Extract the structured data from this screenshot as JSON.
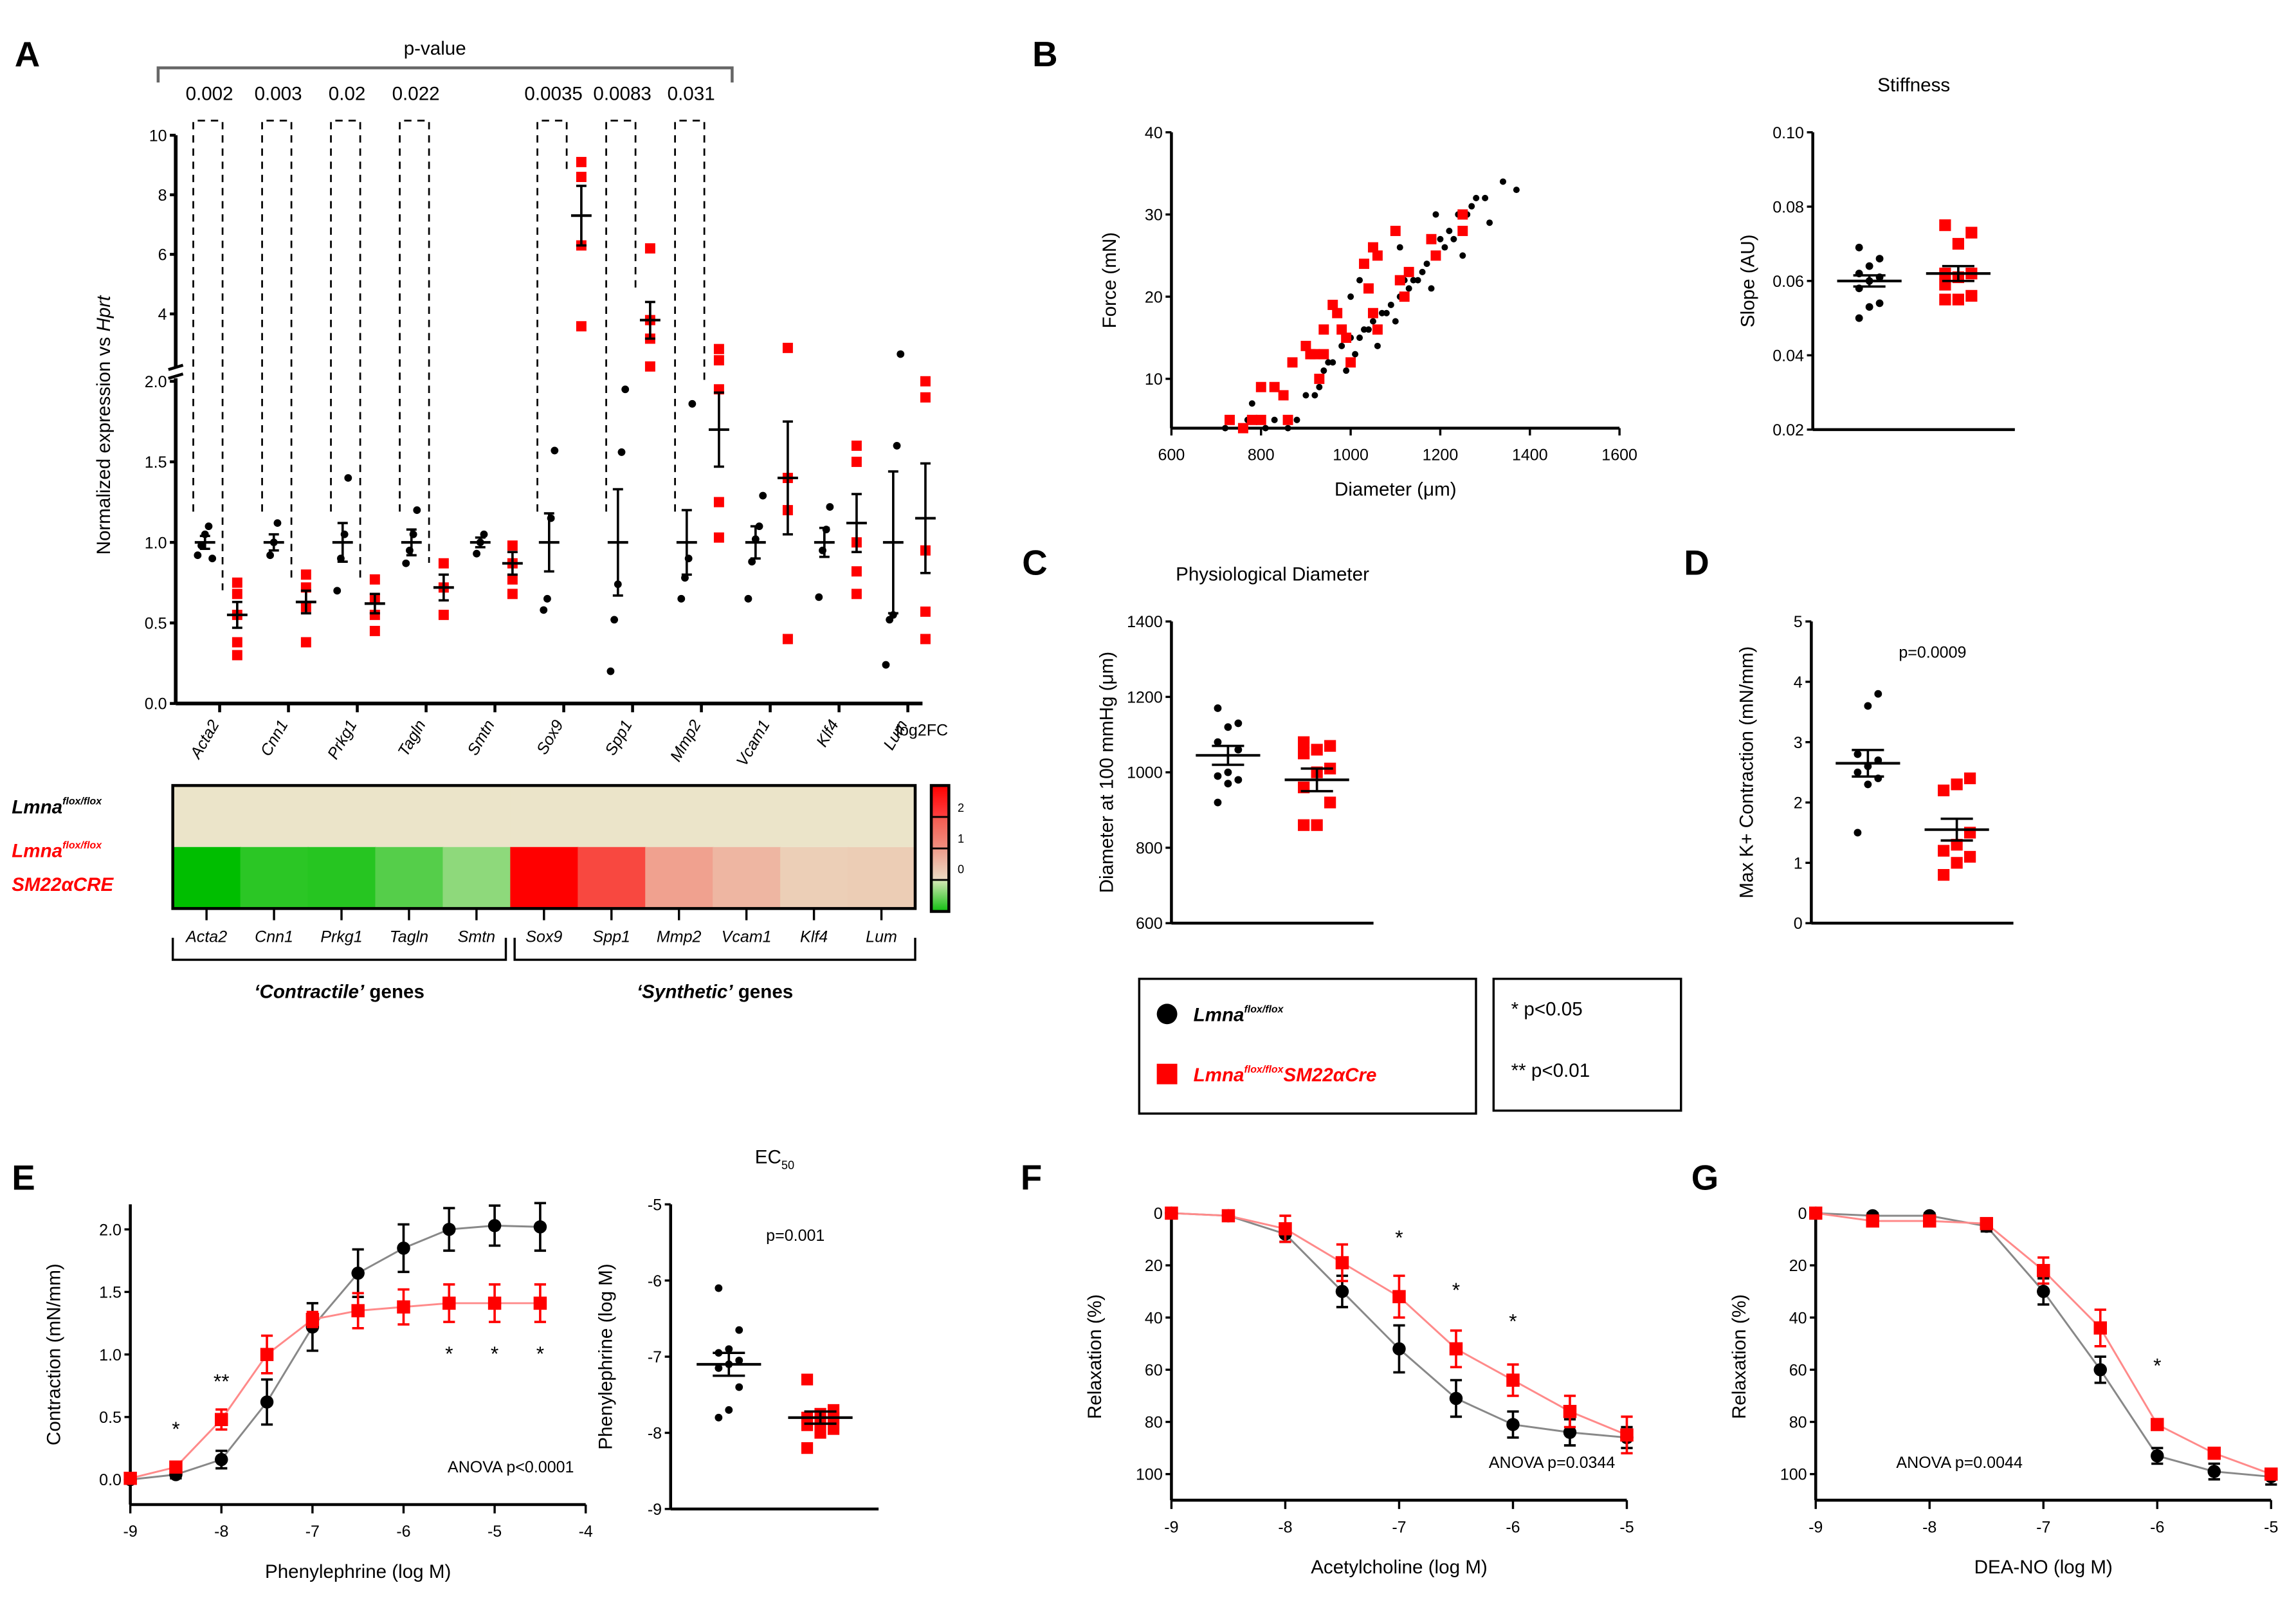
{
  "colors": {
    "control": "#000000",
    "mutant": "#ff0000",
    "control_line": "#888888",
    "mutant_line": "#ff8a8a"
  },
  "legend": {
    "control_base": "Lmna",
    "control_sup": "flox/flox",
    "mutant_base": "Lmna",
    "mutant_sup": "flox/flox",
    "mutant_suffix": "SM22αCre",
    "sig1": "* p<0.05",
    "sig2": "** p<0.01"
  },
  "chart_data": [
    {
      "panel": "A",
      "type": "scatter",
      "header": "p-value",
      "ylabel": "Normalized expression vs Hprt",
      "yticks_lower": [
        "0.0",
        "0.5",
        "1.0",
        "1.5",
        "2.0"
      ],
      "yticks_upper": [
        "4",
        "6",
        "8",
        "10"
      ],
      "log2fc_label": "log2FC",
      "categories": [
        "Acta2",
        "Cnn1",
        "Prkg1",
        "Tagln",
        "Smtn",
        "Sox9",
        "Spp1",
        "Mmp2",
        "Vcam1",
        "Klf4",
        "Lum"
      ],
      "pvalues": [
        "0.002",
        "0.003",
        "0.02",
        "0.022",
        "",
        "0.0035",
        "0.0083",
        "0.031",
        "",
        "",
        ""
      ],
      "control": {
        "mean": [
          1.0,
          1.0,
          1.0,
          1.0,
          1.0,
          1.0,
          1.0,
          1.0,
          1.0,
          1.0,
          1.0
        ],
        "sem": [
          0.04,
          0.05,
          0.12,
          0.08,
          0.03,
          0.18,
          0.33,
          0.2,
          0.1,
          0.09,
          0.44
        ],
        "points": [
          [
            0.92,
            0.98,
            1.05,
            1.1,
            0.9
          ],
          [
            0.92,
            1.0,
            1.12
          ],
          [
            0.7,
            0.9,
            1.05,
            1.4
          ],
          [
            0.87,
            0.95,
            1.05,
            1.2
          ],
          [
            0.93,
            1.0,
            1.05
          ],
          [
            0.58,
            0.65,
            1.15,
            1.57
          ],
          [
            0.2,
            0.52,
            0.74,
            1.56,
            1.95
          ],
          [
            0.65,
            0.78,
            0.9,
            1.86
          ],
          [
            0.65,
            0.88,
            1.02,
            1.1,
            1.29
          ],
          [
            0.66,
            0.95,
            1.08,
            1.22
          ],
          [
            0.24,
            0.52,
            0.55,
            1.6,
            2.7
          ]
        ]
      },
      "mutant": {
        "mean": [
          0.55,
          0.63,
          0.62,
          0.72,
          0.87,
          7.3,
          3.8,
          1.7,
          1.4,
          1.12,
          1.15
        ],
        "sem": [
          0.08,
          0.07,
          0.06,
          0.08,
          0.07,
          1.0,
          0.6,
          0.23,
          0.35,
          0.18,
          0.34
        ],
        "points": [
          [
            0.3,
            0.38,
            0.55,
            0.68,
            0.75
          ],
          [
            0.38,
            0.6,
            0.72,
            0.8
          ],
          [
            0.45,
            0.55,
            0.65,
            0.77
          ],
          [
            0.55,
            0.72,
            0.87
          ],
          [
            0.68,
            0.77,
            0.87,
            0.98
          ],
          [
            3.6,
            6.3,
            8.6,
            9.1
          ],
          [
            2.3,
            3.2,
            3.8,
            6.2
          ],
          [
            1.03,
            1.25,
            1.95,
            2.2,
            2.5
          ],
          [
            0.4,
            1.2,
            1.4,
            2.9
          ],
          [
            0.68,
            0.82,
            1.0,
            1.5,
            1.6
          ],
          [
            0.4,
            0.57,
            0.95,
            1.9,
            2.0
          ]
        ]
      },
      "heatmap": {
        "rows": [
          "control",
          "mutant"
        ],
        "log2fc_control": [
          0,
          0,
          0,
          0,
          0,
          0,
          0,
          0,
          0,
          0,
          0
        ],
        "log2fc_mutant": [
          -0.87,
          -0.67,
          -0.69,
          -0.47,
          -0.2,
          2.87,
          1.93,
          0.77,
          0.49,
          0.17,
          0.2
        ],
        "colorbar_ticks": [
          "2",
          "1",
          "0"
        ],
        "groups": [
          {
            "label_pre": "‘Contractile’",
            "label_post": " genes",
            "span": [
              0,
              4
            ]
          },
          {
            "label_pre": "‘Synthetic’",
            "label_post": " genes",
            "span": [
              5,
              10
            ]
          }
        ]
      }
    },
    {
      "panel": "B",
      "type": "scatter",
      "xlabel": "Diameter (μm)",
      "ylabel": "Force (mN)",
      "xlim": [
        600,
        1600
      ],
      "ylim": [
        4,
        40
      ],
      "xticks": [
        "600",
        "800",
        "1000",
        "1200",
        "1400",
        "1600"
      ],
      "yticks": [
        "10",
        "20",
        "30",
        "40"
      ],
      "control": [
        [
          720,
          4
        ],
        [
          770,
          5
        ],
        [
          780,
          7
        ],
        [
          800,
          5
        ],
        [
          810,
          4
        ],
        [
          830,
          5
        ],
        [
          860,
          4
        ],
        [
          880,
          5
        ],
        [
          900,
          8
        ],
        [
          920,
          8
        ],
        [
          930,
          9
        ],
        [
          940,
          11
        ],
        [
          950,
          12
        ],
        [
          960,
          12
        ],
        [
          980,
          14
        ],
        [
          990,
          11
        ],
        [
          1000,
          15
        ],
        [
          1010,
          13
        ],
        [
          1020,
          15
        ],
        [
          1030,
          16
        ],
        [
          1040,
          16
        ],
        [
          1050,
          17
        ],
        [
          1060,
          14
        ],
        [
          1070,
          18
        ],
        [
          1080,
          18
        ],
        [
          1090,
          19
        ],
        [
          1100,
          17
        ],
        [
          1110,
          20
        ],
        [
          1120,
          22
        ],
        [
          1130,
          21
        ],
        [
          1140,
          22
        ],
        [
          1150,
          22
        ],
        [
          1160,
          23
        ],
        [
          1170,
          24
        ],
        [
          1180,
          21
        ],
        [
          1190,
          25
        ],
        [
          1200,
          27
        ],
        [
          1210,
          26
        ],
        [
          1220,
          28
        ],
        [
          1230,
          27
        ],
        [
          1240,
          30
        ],
        [
          1250,
          25
        ],
        [
          1260,
          30
        ],
        [
          1270,
          31
        ],
        [
          1280,
          32
        ],
        [
          1300,
          32
        ],
        [
          1310,
          29
        ],
        [
          1340,
          34
        ],
        [
          1370,
          33
        ],
        [
          1000,
          20
        ],
        [
          1020,
          22
        ],
        [
          1110,
          26
        ],
        [
          1190,
          30
        ]
      ],
      "mutant": [
        [
          730,
          5
        ],
        [
          760,
          4
        ],
        [
          780,
          5
        ],
        [
          800,
          5
        ],
        [
          800,
          9
        ],
        [
          830,
          9
        ],
        [
          850,
          8
        ],
        [
          860,
          5
        ],
        [
          870,
          12
        ],
        [
          900,
          14
        ],
        [
          910,
          13
        ],
        [
          920,
          13
        ],
        [
          930,
          10
        ],
        [
          940,
          16
        ],
        [
          960,
          19
        ],
        [
          980,
          16
        ],
        [
          990,
          15
        ],
        [
          1000,
          12
        ],
        [
          1030,
          24
        ],
        [
          1040,
          21
        ],
        [
          1050,
          18
        ],
        [
          1060,
          16
        ],
        [
          1060,
          25
        ],
        [
          1100,
          28
        ],
        [
          1110,
          22
        ],
        [
          1120,
          20
        ],
        [
          1130,
          23
        ],
        [
          1180,
          27
        ],
        [
          1190,
          25
        ],
        [
          1250,
          30
        ],
        [
          1250,
          28
        ],
        [
          1050,
          26
        ],
        [
          970,
          18
        ],
        [
          940,
          13
        ]
      ]
    },
    {
      "panel": "B-stiffness",
      "type": "scatter",
      "title": "Stiffness",
      "ylabel": "Slope (AU)",
      "ylim": [
        0.02,
        0.1
      ],
      "yticks": [
        "0.02",
        "0.04",
        "0.06",
        "0.08",
        "0.10"
      ],
      "control": {
        "mean": 0.06,
        "sem": 0.0015,
        "points": [
          0.05,
          0.053,
          0.054,
          0.058,
          0.06,
          0.061,
          0.062,
          0.064,
          0.066,
          0.069
        ]
      },
      "mutant": {
        "mean": 0.062,
        "sem": 0.002,
        "points": [
          0.055,
          0.055,
          0.056,
          0.059,
          0.061,
          0.062,
          0.062,
          0.07,
          0.073,
          0.075
        ]
      }
    },
    {
      "panel": "C",
      "type": "scatter",
      "title": "Physiological Diameter",
      "ylabel": "Diameter at 100 mmHg (μm)",
      "ylim": [
        600,
        1400
      ],
      "yticks": [
        "600",
        "800",
        "1000",
        "1200",
        "1400"
      ],
      "control": {
        "mean": 1045,
        "sem": 25,
        "points": [
          920,
          970,
          980,
          990,
          1000,
          1060,
          1080,
          1120,
          1130,
          1170
        ]
      },
      "mutant": {
        "mean": 980,
        "sem": 30,
        "points": [
          860,
          860,
          920,
          960,
          1000,
          1010,
          1050,
          1060,
          1070,
          1080
        ]
      }
    },
    {
      "panel": "D",
      "type": "scatter",
      "ylabel": "Max K+ Contraction (mN/mm)",
      "ylim": [
        0,
        5
      ],
      "yticks": [
        "0",
        "1",
        "2",
        "3",
        "4",
        "5"
      ],
      "annotation": "p=0.0009",
      "control": {
        "mean": 2.65,
        "sem": 0.22,
        "points": [
          1.5,
          2.3,
          2.4,
          2.5,
          2.6,
          2.7,
          2.8,
          3.6,
          3.8
        ]
      },
      "mutant": {
        "mean": 1.55,
        "sem": 0.18,
        "points": [
          0.8,
          1.0,
          1.1,
          1.2,
          1.3,
          1.5,
          2.2,
          2.3,
          2.4
        ]
      }
    },
    {
      "panel": "E",
      "type": "line",
      "xlabel": "Phenylephrine (log M)",
      "ylabel": "Contraction (mN/mm)",
      "xlim": [
        -9,
        -4
      ],
      "ylim": [
        -0.2,
        2.2
      ],
      "xticks": [
        "-9",
        "-8",
        "-7",
        "-6",
        "-5",
        "-4"
      ],
      "yticks": [
        "0.0",
        "0.5",
        "1.0",
        "1.5",
        "2.0"
      ],
      "x": [
        -9,
        -8.5,
        -8,
        -7.5,
        -7,
        -6.5,
        -6,
        -5.5,
        -5,
        -4.5
      ],
      "series": [
        {
          "name": "Lmna flox/flox",
          "values": [
            0.0,
            0.04,
            0.16,
            0.62,
            1.22,
            1.65,
            1.85,
            2.0,
            2.03,
            2.02
          ],
          "sem": [
            0.03,
            0.03,
            0.07,
            0.18,
            0.19,
            0.19,
            0.19,
            0.17,
            0.16,
            0.19
          ]
        },
        {
          "name": "Lmna flox/flox SM22αCre",
          "values": [
            0.01,
            0.1,
            0.48,
            1.0,
            1.28,
            1.35,
            1.38,
            1.41,
            1.41,
            1.41
          ],
          "sem": [
            0.02,
            0.04,
            0.08,
            0.15,
            0.06,
            0.14,
            0.14,
            0.15,
            0.15,
            0.15
          ]
        }
      ],
      "significance": [
        {
          "x": -8.5,
          "label": "*",
          "pos": "above"
        },
        {
          "x": -8,
          "label": "**",
          "pos": "above"
        },
        {
          "x": -5.5,
          "label": "*",
          "pos": "below"
        },
        {
          "x": -5,
          "label": "*",
          "pos": "below"
        },
        {
          "x": -4.5,
          "label": "*",
          "pos": "below"
        }
      ],
      "annotation": "ANOVA p<0.0001"
    },
    {
      "panel": "E-EC50",
      "type": "scatter",
      "title": "EC50",
      "ylabel": "Phenylephrine (log M)",
      "ylim": [
        -9,
        -5
      ],
      "yticks": [
        "-9",
        "-8",
        "-7",
        "-6",
        "-5"
      ],
      "annotation": "p=0.001",
      "control": {
        "mean": -7.1,
        "sem": 0.15,
        "points": [
          -7.8,
          -7.7,
          -7.4,
          -7.15,
          -7.1,
          -7.05,
          -6.95,
          -6.9,
          -6.65,
          -6.1
        ]
      },
      "mutant": {
        "mean": -7.8,
        "sem": 0.08,
        "points": [
          -8.2,
          -8.0,
          -7.95,
          -7.9,
          -7.85,
          -7.8,
          -7.8,
          -7.75,
          -7.7,
          -7.3
        ]
      }
    },
    {
      "panel": "F",
      "type": "line",
      "xlabel": "Acetylcholine (log M)",
      "ylabel": "Relaxation (%)",
      "xlim": [
        -9,
        -5
      ],
      "ylim": [
        0,
        110
      ],
      "y_inverted": true,
      "xticks": [
        "-9",
        "-8",
        "-7",
        "-6",
        "-5"
      ],
      "yticks": [
        "0",
        "20",
        "40",
        "60",
        "80",
        "100"
      ],
      "x": [
        -9,
        -8.5,
        -8,
        -7.5,
        -7,
        -6.5,
        -6,
        -5.5,
        -5
      ],
      "series": [
        {
          "name": "Lmna flox/flox",
          "values": [
            0,
            1,
            8,
            30,
            52,
            71,
            81,
            84,
            86
          ],
          "sem": [
            0,
            1,
            3,
            6,
            9,
            7,
            5,
            5,
            4
          ]
        },
        {
          "name": "Lmna flox/flox SM22αCre",
          "values": [
            0,
            1,
            6,
            19,
            32,
            52,
            64,
            76,
            85
          ],
          "sem": [
            0,
            1,
            5,
            7,
            8,
            7,
            6,
            6,
            7
          ]
        }
      ],
      "significance": [
        {
          "x": -7,
          "label": "*"
        },
        {
          "x": -6.5,
          "label": "*"
        },
        {
          "x": -6,
          "label": "*"
        }
      ],
      "annotation": "ANOVA p=0.0344"
    },
    {
      "panel": "G",
      "type": "line",
      "xlabel": "DEA-NO (log M)",
      "ylabel": "Relaxation (%)",
      "xlim": [
        -9,
        -5
      ],
      "ylim": [
        0,
        110
      ],
      "y_inverted": true,
      "xticks": [
        "-9",
        "-8",
        "-7",
        "-6",
        "-5"
      ],
      "yticks": [
        "0",
        "20",
        "40",
        "60",
        "80",
        "100"
      ],
      "x": [
        -9,
        -8.5,
        -8,
        -7.5,
        -7,
        -6.5,
        -6,
        -5.5,
        -5
      ],
      "series": [
        {
          "name": "Lmna flox/flox",
          "values": [
            0,
            1,
            1,
            5,
            30,
            60,
            93,
            99,
            101
          ],
          "sem": [
            0,
            1,
            1,
            2,
            5,
            5,
            3,
            3,
            3
          ]
        },
        {
          "name": "Lmna flox/flox SM22αCre",
          "values": [
            0,
            3,
            3,
            4,
            22,
            44,
            81,
            92,
            100
          ],
          "sem": [
            0,
            1,
            1,
            2,
            5,
            7,
            2,
            2,
            2
          ]
        }
      ],
      "significance": [
        {
          "x": -6,
          "label": "*"
        }
      ],
      "annotation": "ANOVA p=0.0044"
    }
  ],
  "panel_letters": [
    "A",
    "B",
    "C",
    "D",
    "E",
    "F",
    "G"
  ]
}
